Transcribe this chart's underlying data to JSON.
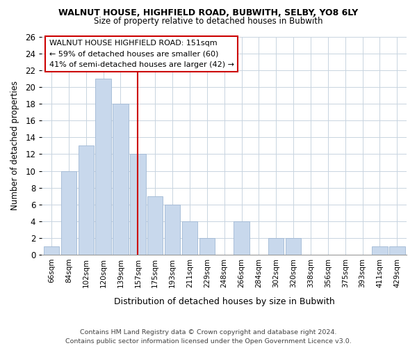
{
  "title": "WALNUT HOUSE, HIGHFIELD ROAD, BUBWITH, SELBY, YO8 6LY",
  "subtitle": "Size of property relative to detached houses in Bubwith",
  "xlabel": "Distribution of detached houses by size in Bubwith",
  "ylabel": "Number of detached properties",
  "bar_labels": [
    "66sqm",
    "84sqm",
    "102sqm",
    "120sqm",
    "139sqm",
    "157sqm",
    "175sqm",
    "193sqm",
    "211sqm",
    "229sqm",
    "248sqm",
    "266sqm",
    "284sqm",
    "302sqm",
    "320sqm",
    "338sqm",
    "356sqm",
    "375sqm",
    "393sqm",
    "411sqm",
    "429sqm"
  ],
  "bar_values": [
    1,
    10,
    13,
    21,
    18,
    12,
    7,
    6,
    4,
    2,
    0,
    4,
    0,
    2,
    2,
    0,
    0,
    0,
    0,
    1,
    1
  ],
  "bar_color": "#c8d8ec",
  "bar_edge_color": "#a0b8d4",
  "highlight_line_index": 5,
  "highlight_line_color": "#cc0000",
  "ylim": [
    0,
    26
  ],
  "yticks": [
    0,
    2,
    4,
    6,
    8,
    10,
    12,
    14,
    16,
    18,
    20,
    22,
    24,
    26
  ],
  "annotation_title": "WALNUT HOUSE HIGHFIELD ROAD: 151sqm",
  "annotation_line1": "← 59% of detached houses are smaller (60)",
  "annotation_line2": "41% of semi-detached houses are larger (42) →",
  "footer_line1": "Contains HM Land Registry data © Crown copyright and database right 2024.",
  "footer_line2": "Contains public sector information licensed under the Open Government Licence v3.0.",
  "bg_color": "#ffffff",
  "grid_color": "#c8d4e0"
}
